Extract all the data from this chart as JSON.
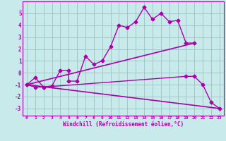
{
  "title": "",
  "xlabel": "Windchill (Refroidissement éolien,°C)",
  "bg_color": "#c8eaea",
  "grid_color": "#a0c8c8",
  "line_color": "#aa00aa",
  "xlim": [
    -0.5,
    23.5
  ],
  "ylim": [
    -3.6,
    6.0
  ],
  "yticks": [
    -3,
    -2,
    -1,
    0,
    1,
    2,
    3,
    4,
    5
  ],
  "xticks": [
    0,
    1,
    2,
    3,
    4,
    5,
    6,
    7,
    8,
    9,
    10,
    11,
    12,
    13,
    14,
    15,
    16,
    17,
    18,
    19,
    20,
    21,
    22,
    23
  ],
  "series": [
    {
      "x": [
        0,
        1,
        2,
        3,
        4,
        5,
        5,
        6,
        7,
        8,
        9,
        10,
        11,
        12,
        13,
        14,
        15,
        16,
        17,
        18,
        19,
        20
      ],
      "y": [
        -1.0,
        -0.4,
        -1.2,
        -1.1,
        0.2,
        0.2,
        -0.7,
        -0.7,
        1.4,
        0.7,
        1.0,
        2.2,
        4.0,
        3.8,
        4.3,
        5.5,
        4.5,
        5.0,
        4.3,
        4.4,
        2.5,
        2.5
      ],
      "marker": "D",
      "markersize": 2.5,
      "linewidth": 1.0
    },
    {
      "x": [
        0,
        20
      ],
      "y": [
        -1.0,
        2.5
      ],
      "marker": null,
      "linewidth": 1.2
    },
    {
      "x": [
        0,
        1,
        2,
        19,
        20,
        21,
        22,
        23
      ],
      "y": [
        -1.0,
        -1.2,
        -1.2,
        -0.3,
        -0.3,
        -1.0,
        -2.5,
        -3.0
      ],
      "marker": "D",
      "markersize": 2.5,
      "linewidth": 1.0
    },
    {
      "x": [
        0,
        23
      ],
      "y": [
        -1.0,
        -3.0
      ],
      "marker": null,
      "linewidth": 1.2
    }
  ]
}
